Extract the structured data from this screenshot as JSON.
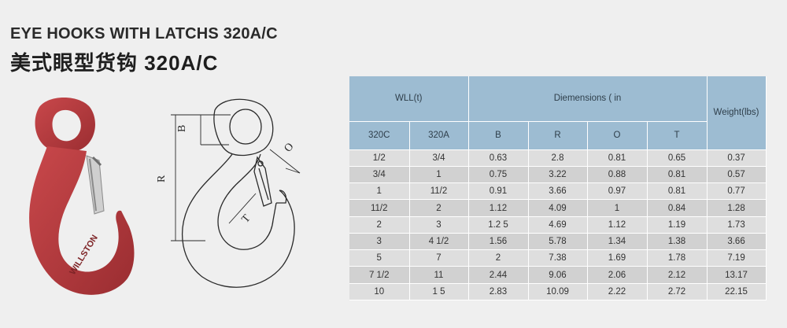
{
  "title_en": "EYE HOOKS WITH LATCHS 320A/C",
  "title_cn": "美式眼型货钩 320A/C",
  "photo": {
    "embossed_text": "WILLSTON",
    "hook_color": "#b53a3e"
  },
  "drawing": {
    "labels": {
      "B": "B",
      "R": "R",
      "O": "O",
      "T": "T"
    }
  },
  "table": {
    "group_headers": {
      "wll": "WLL(t)",
      "dimensions": "Diemensions ( in",
      "weight": "Weight(lbs)"
    },
    "sub_headers": [
      "320C",
      "320A",
      "B",
      "R",
      "O",
      "T"
    ],
    "rows": [
      [
        "1/2",
        "3/4",
        "0.63",
        "2.8",
        "0.81",
        "0.65",
        "0.37"
      ],
      [
        "3/4",
        "1",
        "0.75",
        "3.22",
        "0.88",
        "0.81",
        "0.57"
      ],
      [
        "1",
        "11/2",
        "0.91",
        "3.66",
        "0.97",
        "0.81",
        "0.77"
      ],
      [
        "11/2",
        "2",
        "1.12",
        "4.09",
        "1",
        "0.84",
        "1.28"
      ],
      [
        "2",
        "3",
        "1.2 5",
        "4.69",
        "1.12",
        "1.19",
        "1.73"
      ],
      [
        "3",
        "4 1/2",
        "1.56",
        "5.78",
        "1.34",
        "1.38",
        "3.66"
      ],
      [
        "5",
        "7",
        "2",
        "7.38",
        "1.69",
        "1.78",
        "7.19"
      ],
      [
        "7 1/2",
        "11",
        "2.44",
        "9.06",
        "2.06",
        "2.12",
        "13.17"
      ],
      [
        "10",
        "1 5",
        "2.83",
        "10.09",
        "2.22",
        "2.72",
        "22.15"
      ]
    ]
  },
  "colors": {
    "header_blue": "#9dbcd2",
    "row_light": "#dedede",
    "row_dark": "#d1d1d1",
    "background": "#efefef"
  }
}
